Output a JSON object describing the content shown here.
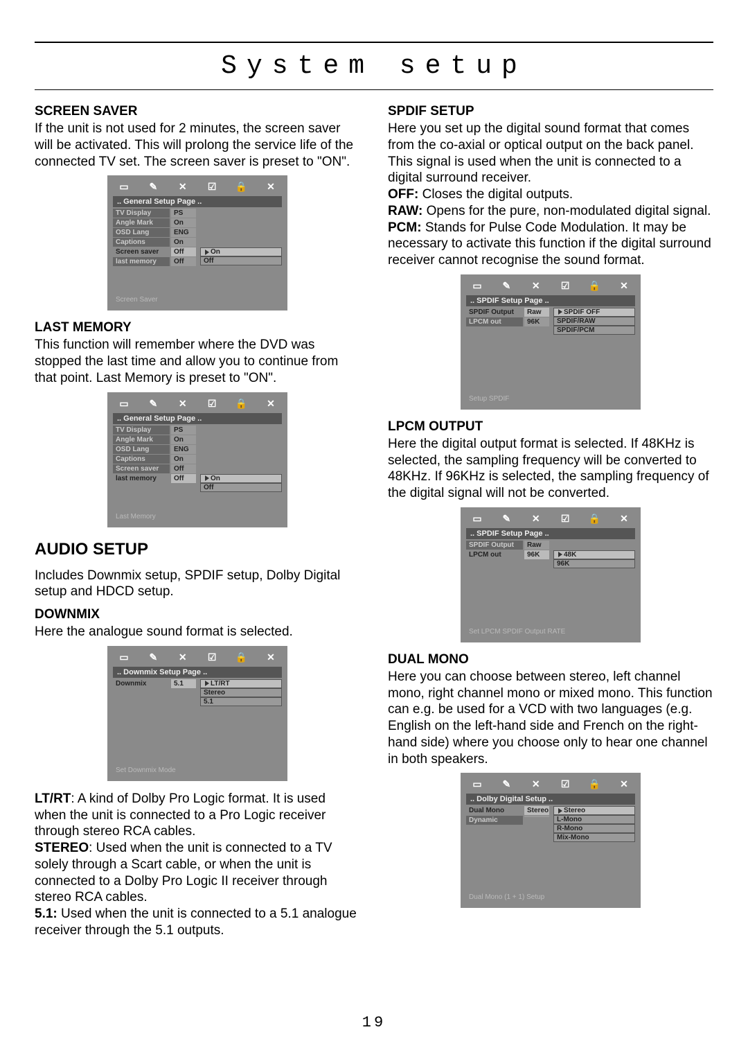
{
  "page_title": "System setup",
  "page_number": "19",
  "left": {
    "screen_saver": {
      "heading": "SCREEN SAVER",
      "text": "If the unit is not used for 2 minutes, the screen saver will be activated. This will prolong the service life of the connected TV set. The screen saver is preset to \"ON\"."
    },
    "last_memory": {
      "heading": "LAST MEMORY",
      "text": "This function will remember where the DVD was stopped the last time and allow you to continue from that point. Last Memory is preset to \"ON\"."
    },
    "audio_setup": {
      "heading": "AUDIO SETUP",
      "intro": "Includes Downmix setup, SPDIF setup, Dolby Digital setup and HDCD setup."
    },
    "downmix": {
      "heading": "DOWNMIX",
      "text": "Here the analogue sound format is selected.",
      "ltrt_label": "LT/RT",
      "ltrt_text": ": A kind of Dolby Pro Logic format. It is used when the unit is connected to a Pro Logic receiver through stereo RCA cables.",
      "stereo_label": "STEREO",
      "stereo_text": ": Used when the unit is connected to a TV solely through a Scart cable, or when the unit is connected to a Dolby Pro Logic II receiver through stereo RCA cables.",
      "five1_label": "5.1:",
      "five1_text": " Used when the unit is connected to a 5.1 analogue receiver through the 5.1 outputs."
    }
  },
  "right": {
    "spdif": {
      "heading": "SPDIF SETUP",
      "text": "Here you set up the digital sound format that comes from the co-axial or optical output on the back panel.  This signal is used when the unit is connected to a digital surround receiver.",
      "off_label": "OFF:",
      "off_text": " Closes the digital outputs.",
      "raw_label": "RAW:",
      "raw_text": " Opens for the pure, non-modulated digital signal.",
      "pcm_label": "PCM:",
      "pcm_text": " Stands for Pulse Code Modulation. It may be necessary to activate this function if the digital surround receiver cannot recognise the sound format."
    },
    "lpcm": {
      "heading": "LPCM OUTPUT",
      "text": "Here the digital output format is selected. If 48KHz is selected, the sampling frequency will be converted to 48KHz. If  96KHz is selected, the sampling frequency of the digital signal will not be converted."
    },
    "dual": {
      "heading": "DUAL MONO",
      "text": "Here you can choose between stereo, left channel mono, right channel mono or mixed mono. This function can e.g. be used for a  VCD with two languages (e.g. English on the left-hand side and French on the right-hand side) where you choose only to hear one channel in both speakers."
    }
  },
  "menus": {
    "icons": [
      "▭",
      "✎",
      "✕",
      "☑",
      "🔒",
      "✕"
    ],
    "general1": {
      "title": ".. General Setup Page ..",
      "rows": [
        {
          "label": "TV Display",
          "val": "PS"
        },
        {
          "label": "Angle Mark",
          "val": "On"
        },
        {
          "label": "OSD Lang",
          "val": "ENG"
        },
        {
          "label": "Captions",
          "val": "On"
        },
        {
          "label": "Screen saver",
          "val": "Off"
        },
        {
          "label": "last memory",
          "val": "Off"
        }
      ],
      "sub": [
        "On",
        "Off"
      ],
      "active_row": 4,
      "footer": "Screen Saver"
    },
    "general2": {
      "title": ".. General Setup Page ..",
      "rows": [
        {
          "label": "TV Display",
          "val": "PS"
        },
        {
          "label": "Angle Mark",
          "val": "On"
        },
        {
          "label": "OSD Lang",
          "val": "ENG"
        },
        {
          "label": "Captions",
          "val": "On"
        },
        {
          "label": "Screen saver",
          "val": "Off"
        },
        {
          "label": "last memory",
          "val": "Off"
        }
      ],
      "sub": [
        "On",
        "Off"
      ],
      "active_row": 5,
      "footer": "Last Memory"
    },
    "downmix": {
      "title": ".. Downmix Setup Page ..",
      "rows": [
        {
          "label": "Downmix",
          "val": "5.1"
        }
      ],
      "sub": [
        "LT/RT",
        "Stereo",
        "5.1"
      ],
      "active_row": 0,
      "footer": "Set Downmix Mode"
    },
    "spdif": {
      "title": ".. SPDIF Setup Page ..",
      "rows": [
        {
          "label": "SPDIF Output",
          "val": "Raw"
        },
        {
          "label": "LPCM out",
          "val": "96K"
        }
      ],
      "sub": [
        "SPDIF OFF",
        "SPDIF/RAW",
        "SPDIF/PCM"
      ],
      "active_row": 0,
      "footer": "Setup SPDIF"
    },
    "lpcm": {
      "title": ".. SPDIF Setup Page ..",
      "rows": [
        {
          "label": "SPDIF Output",
          "val": "Raw"
        },
        {
          "label": "LPCM out",
          "val": "96K"
        }
      ],
      "sub": [
        "48K",
        "96K"
      ],
      "active_row": 1,
      "footer": "Set LPCM SPDIF Output RATE"
    },
    "dolby": {
      "title": ".. Dolby Digital Setup ..",
      "rows": [
        {
          "label": "Dual Mono",
          "val": "Stereo"
        },
        {
          "label": "Dynamic",
          "val": ""
        }
      ],
      "sub": [
        "Stereo",
        "L-Mono",
        "R-Mono",
        "Mix-Mono"
      ],
      "active_row": 0,
      "footer": "Dual Mono (1 + 1) Setup"
    }
  }
}
